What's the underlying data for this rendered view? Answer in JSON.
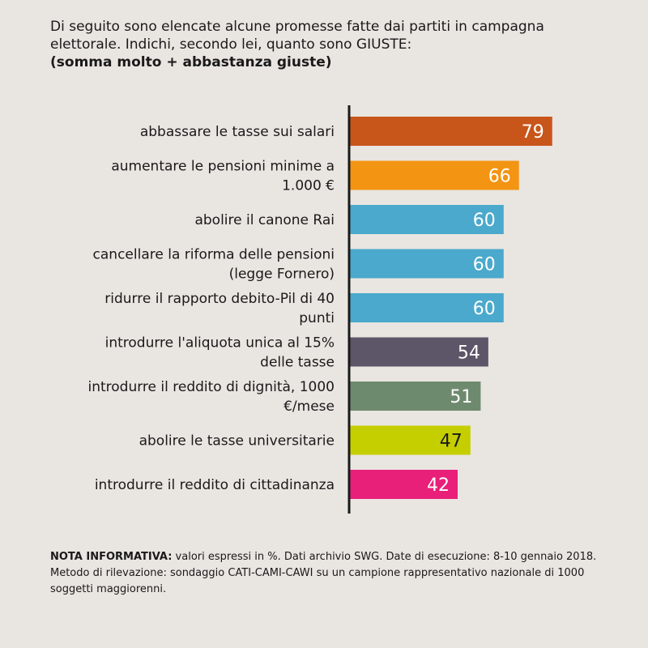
{
  "header": {
    "question": "Di seguito sono elencate alcune promesse fatte dai partiti in campagna elettorale. Indichi, secondo lei, quanto sono GIUSTE:",
    "subtitle": "(somma molto + abbastanza giuste)"
  },
  "chart_data": {
    "type": "bar",
    "orientation": "horizontal",
    "categories": [
      [
        "abbassare le tasse sui salari"
      ],
      [
        "aumentare le pensioni minime a",
        "1.000 €"
      ],
      [
        "abolire il canone Rai"
      ],
      [
        "cancellare la riforma delle pensioni",
        "(legge Fornero)"
      ],
      [
        "ridurre il rapporto debito-Pil di 40",
        "punti"
      ],
      [
        "introdurre l'aliquota unica al 15%",
        "delle tasse"
      ],
      [
        "introdurre il reddito di dignità, 1000",
        "€/mese"
      ],
      [
        "abolire le tasse universitarie"
      ],
      [
        "introdurre il reddito di cittadinanza"
      ]
    ],
    "values": [
      79,
      66,
      60,
      60,
      60,
      54,
      51,
      47,
      42
    ],
    "value_labels": [
      "79",
      "66",
      "60",
      "60",
      "60",
      "54",
      "51",
      "47",
      "42"
    ],
    "colors": [
      "#c8561a",
      "#f39412",
      "#4aa9cc",
      "#4aa9cc",
      "#4aa9cc",
      "#5d5568",
      "#6e8a6e",
      "#c5cf00",
      "#e8207a"
    ],
    "label_colors": [
      "#ffffff",
      "#ffffff",
      "#ffffff",
      "#ffffff",
      "#ffffff",
      "#ffffff",
      "#ffffff",
      "#1a1a1a",
      "#ffffff"
    ],
    "xlim": [
      0,
      100
    ],
    "grid": false,
    "legend": "none"
  },
  "footer": {
    "note_title": "NOTA INFORMATIVA:",
    "note_text": " valori espressi in %. Dati archivio SWG. Date di esecuzione: 8-10 gennaio 2018. Metodo di rilevazione: sondaggio CATI-CAMI-CAWI su un campione rappresentativo nazionale di 1000 soggetti maggiorenni."
  }
}
